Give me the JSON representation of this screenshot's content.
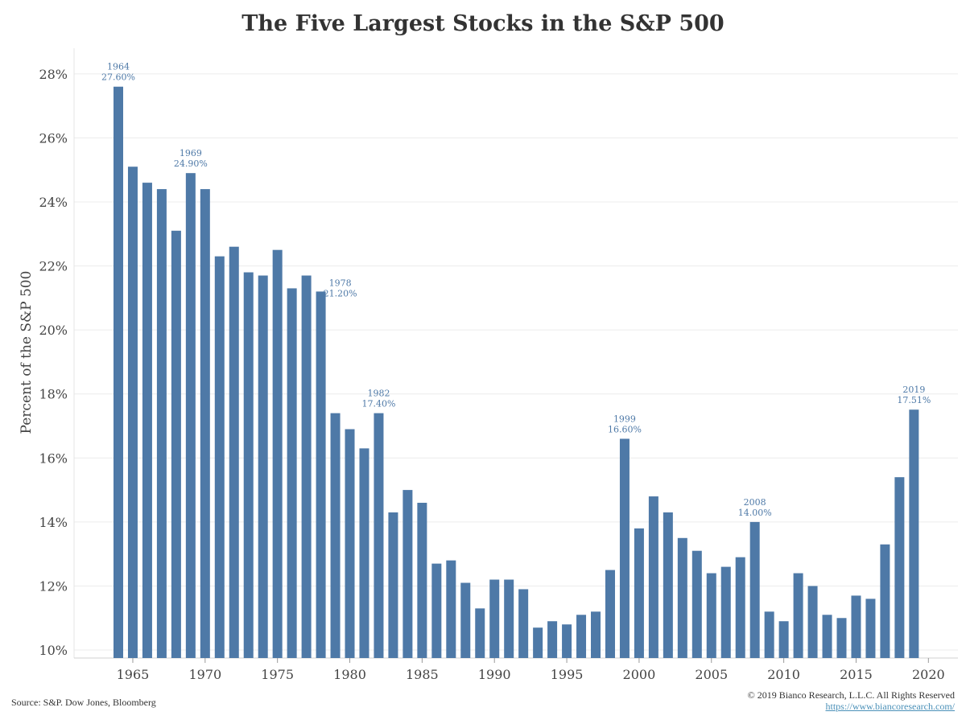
{
  "chart_data": {
    "type": "bar",
    "title": "The Five Largest Stocks in the S&P 500",
    "ylabel": "Percent of the S&P 500",
    "xlabel": "",
    "ylim": [
      9.75,
      28.8
    ],
    "y_ticks": [
      "10%",
      "12%",
      "14%",
      "16%",
      "18%",
      "20%",
      "22%",
      "24%",
      "26%",
      "28%"
    ],
    "x_ticks": [
      "1965",
      "1970",
      "1975",
      "1980",
      "1985",
      "1990",
      "1995",
      "2000",
      "2005",
      "2010",
      "2015",
      "2020"
    ],
    "bar_color": "#4e79a7",
    "grid": "horizontal",
    "x": [
      1964,
      1965,
      1966,
      1967,
      1968,
      1969,
      1970,
      1971,
      1972,
      1973,
      1974,
      1975,
      1976,
      1977,
      1978,
      1979,
      1980,
      1981,
      1982,
      1983,
      1984,
      1985,
      1986,
      1987,
      1988,
      1989,
      1990,
      1991,
      1992,
      1993,
      1994,
      1995,
      1996,
      1997,
      1998,
      1999,
      2000,
      2001,
      2002,
      2003,
      2004,
      2005,
      2006,
      2007,
      2008,
      2009,
      2010,
      2011,
      2012,
      2013,
      2014,
      2015,
      2016,
      2017,
      2018,
      2019
    ],
    "values": [
      27.6,
      25.1,
      24.6,
      24.4,
      23.1,
      24.9,
      24.4,
      22.3,
      22.6,
      21.8,
      21.7,
      22.5,
      21.3,
      21.7,
      21.2,
      17.4,
      16.9,
      16.3,
      17.4,
      14.3,
      15.0,
      14.6,
      12.7,
      12.8,
      12.1,
      11.3,
      12.2,
      12.2,
      11.9,
      10.7,
      10.9,
      10.8,
      11.1,
      11.2,
      12.5,
      16.6,
      13.8,
      14.8,
      14.3,
      13.5,
      13.1,
      12.4,
      12.6,
      12.9,
      14.0,
      11.2,
      10.9,
      12.4,
      12.0,
      11.1,
      11.0,
      11.7,
      11.6,
      13.3,
      15.4,
      17.51
    ],
    "annotations": [
      {
        "year": "1964",
        "label": "27.60%"
      },
      {
        "year": "1969",
        "label": "24.90%"
      },
      {
        "year": "1978",
        "label": "21.20%"
      },
      {
        "year": "1982",
        "label": "17.40%"
      },
      {
        "year": "1999",
        "label": "16.60%"
      },
      {
        "year": "2008",
        "label": "14.00%"
      },
      {
        "year": "2019",
        "label": "17.51%"
      }
    ]
  },
  "footer": {
    "source": "Source: S&P. Dow Jones, Bloomberg",
    "copyright": "© 2019 Bianco Research, L.L.C. All Rights Reserved",
    "url": "https://www.biancoresearch.com/"
  }
}
